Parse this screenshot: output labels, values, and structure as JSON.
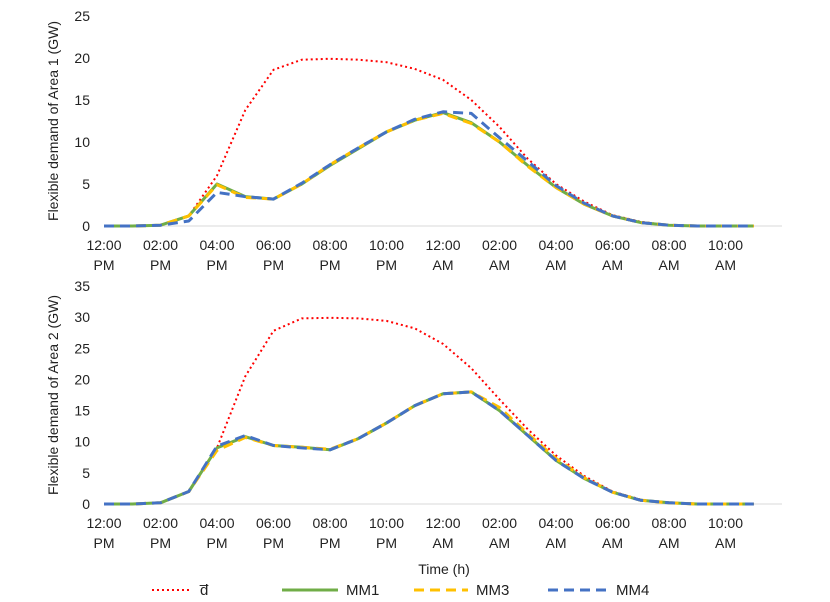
{
  "chart_data": {
    "type": "line",
    "xlabel": "Time (h)",
    "x_tick_labels": [
      [
        "12:00",
        "PM"
      ],
      [
        "02:00",
        "PM"
      ],
      [
        "04:00",
        "PM"
      ],
      [
        "06:00",
        "PM"
      ],
      [
        "08:00",
        "PM"
      ],
      [
        "10:00",
        "PM"
      ],
      [
        "12:00",
        "AM"
      ],
      [
        "02:00",
        "AM"
      ],
      [
        "04:00",
        "AM"
      ],
      [
        "06:00",
        "AM"
      ],
      [
        "08:00",
        "AM"
      ],
      [
        "10:00",
        "AM"
      ]
    ],
    "x_hours": [
      0,
      1,
      2,
      3,
      4,
      5,
      6,
      7,
      8,
      9,
      10,
      11,
      12,
      13,
      14,
      15,
      16,
      17,
      18,
      19,
      20,
      21,
      22,
      23
    ],
    "legend": [
      {
        "name": "d̅",
        "color": "#ff0000",
        "style": "dotted"
      },
      {
        "name": "MM1",
        "color": "#70ad47",
        "style": "solid"
      },
      {
        "name": "MM3",
        "color": "#ffc000",
        "style": "dashed"
      },
      {
        "name": "MM4",
        "color": "#4472c4",
        "style": "dashed"
      }
    ],
    "panels": [
      {
        "ylabel": "Flexible demand of Area 1 (GW)",
        "ylim": [
          0,
          25
        ],
        "yticks": [
          0,
          5,
          10,
          15,
          20,
          25
        ],
        "series": [
          {
            "name": "d̅",
            "values": [
              0,
              0,
              0.1,
              1.2,
              6.0,
              13.8,
              18.6,
              19.8,
              19.9,
              19.8,
              19.5,
              18.7,
              17.4,
              15.0,
              11.8,
              8.0,
              5.0,
              2.9,
              1.3,
              0.5,
              0.1,
              0,
              0,
              0
            ]
          },
          {
            "name": "MM1",
            "values": [
              0,
              0,
              0.1,
              1.2,
              5.0,
              3.5,
              3.2,
              5.0,
              7.2,
              9.2,
              11.2,
              12.6,
              13.5,
              12.3,
              10.0,
              7.2,
              4.6,
              2.6,
              1.2,
              0.4,
              0.1,
              0,
              0,
              0
            ]
          },
          {
            "name": "MM3",
            "values": [
              0,
              0,
              0.1,
              1.2,
              4.9,
              3.4,
              3.2,
              5.0,
              7.3,
              9.3,
              11.2,
              12.6,
              13.4,
              12.2,
              10.0,
              7.1,
              4.6,
              2.6,
              1.2,
              0.4,
              0.1,
              0,
              0,
              0
            ]
          },
          {
            "name": "MM4",
            "values": [
              0,
              0,
              0.1,
              0.6,
              4.0,
              3.5,
              3.2,
              5.1,
              7.3,
              9.3,
              11.2,
              12.7,
              13.6,
              13.4,
              10.5,
              7.7,
              4.8,
              2.7,
              1.2,
              0.4,
              0.1,
              0,
              0,
              0
            ]
          }
        ]
      },
      {
        "ylabel": "Flexible demand of Area 2 (GW)",
        "ylim": [
          0,
          35
        ],
        "yticks": [
          0,
          5,
          10,
          15,
          20,
          25,
          30,
          35
        ],
        "series": [
          {
            "name": "d̅",
            "values": [
              0,
              0,
              0.2,
              2.0,
              9.0,
              20.5,
              27.8,
              29.8,
              29.9,
              29.8,
              29.4,
              28.2,
              25.7,
              21.8,
              16.8,
              12.0,
              7.8,
              4.5,
              2.0,
              0.7,
              0.2,
              0,
              0,
              0
            ]
          },
          {
            "name": "MM1",
            "values": [
              0,
              0,
              0.2,
              2.0,
              9.0,
              10.8,
              9.4,
              9.1,
              8.7,
              10.5,
              13.0,
              15.8,
              17.7,
              18.0,
              15.0,
              11.0,
              7.0,
              4.1,
              1.9,
              0.6,
              0.2,
              0,
              0,
              0
            ]
          },
          {
            "name": "MM3",
            "values": [
              0,
              0,
              0.2,
              2.0,
              8.6,
              10.7,
              9.4,
              9.1,
              8.8,
              10.5,
              13.0,
              15.8,
              17.7,
              18.0,
              15.5,
              11.3,
              7.3,
              4.2,
              1.9,
              0.6,
              0.2,
              0,
              0,
              0
            ]
          },
          {
            "name": "MM4",
            "values": [
              0,
              0,
              0.2,
              2.0,
              9.3,
              11.0,
              9.4,
              9.0,
              8.7,
              10.5,
              13.0,
              15.8,
              17.7,
              18.0,
              15.0,
              11.0,
              7.0,
              4.1,
              1.9,
              0.6,
              0.2,
              0,
              0,
              0
            ]
          }
        ]
      }
    ]
  }
}
